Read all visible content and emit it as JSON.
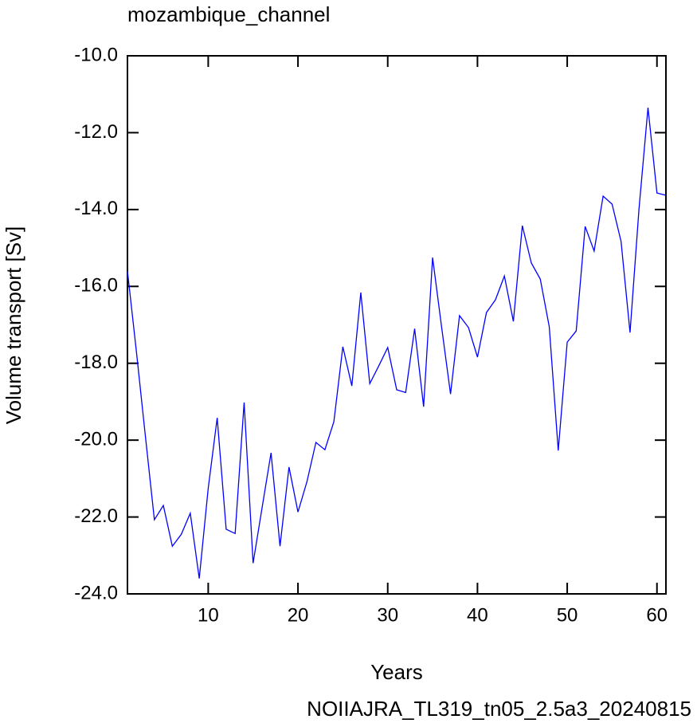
{
  "chart_data": {
    "type": "line",
    "title": "mozambique_channel",
    "xlabel": "Years",
    "ylabel": "Volume transport [Sv]",
    "footer": "NOIIAJRA_TL319_tn05_2.5a3_20240815",
    "x": [
      1,
      2,
      3,
      4,
      5,
      6,
      7,
      8,
      9,
      10,
      11,
      12,
      13,
      14,
      15,
      16,
      17,
      18,
      19,
      20,
      21,
      22,
      23,
      24,
      25,
      26,
      27,
      28,
      29,
      30,
      31,
      32,
      33,
      34,
      35,
      36,
      37,
      38,
      39,
      40,
      41,
      42,
      43,
      44,
      45,
      46,
      47,
      48,
      49,
      50,
      51,
      52,
      53,
      54,
      55,
      56,
      57,
      58,
      59,
      60,
      61
    ],
    "series": [
      {
        "color": "#0000ff",
        "values": [
          -15.6,
          -17.7,
          -19.9,
          -22.07,
          -21.7,
          -22.76,
          -22.45,
          -21.9,
          -23.6,
          -21.25,
          -19.42,
          -22.32,
          -22.43,
          -19.02,
          -23.2,
          -21.76,
          -20.33,
          -22.76,
          -20.7,
          -21.87,
          -21.08,
          -20.06,
          -20.25,
          -19.52,
          -17.57,
          -18.59,
          -16.16,
          -18.53,
          -18.07,
          -17.59,
          -18.69,
          -18.76,
          -17.1,
          -19.13,
          -15.25,
          -17.05,
          -18.8,
          -16.76,
          -17.07,
          -17.84,
          -16.68,
          -16.35,
          -15.73,
          -16.91,
          -14.42,
          -15.39,
          -15.81,
          -17.05,
          -20.27,
          -17.45,
          -17.16,
          -14.44,
          -15.08,
          -13.65,
          -13.86,
          -14.83,
          -17.2,
          -13.98,
          -11.35,
          -13.57,
          -13.63
        ]
      }
    ],
    "xlim": [
      1,
      61
    ],
    "xticks": [
      10,
      20,
      30,
      40,
      50,
      60
    ],
    "ylim": [
      -24,
      -10
    ],
    "yticks": [
      {
        "value": -10,
        "label": "-10.0"
      },
      {
        "value": -12,
        "label": "-12.0"
      },
      {
        "value": -14,
        "label": "-14.0"
      },
      {
        "value": -16,
        "label": "-16.0"
      },
      {
        "value": -18,
        "label": "-18.0"
      },
      {
        "value": -20,
        "label": "-20.0"
      },
      {
        "value": -22,
        "label": "-22.0"
      },
      {
        "value": -24,
        "label": "-24.0"
      }
    ],
    "footer_color": "#0000ff"
  }
}
